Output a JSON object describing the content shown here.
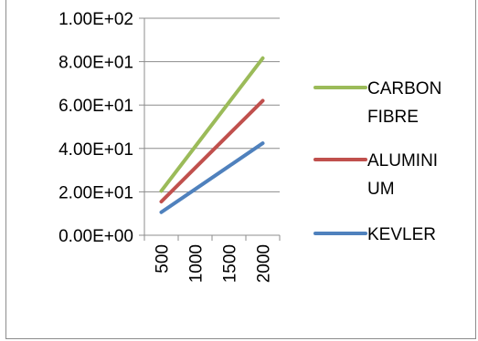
{
  "chart_data": {
    "type": "line",
    "categories": [
      "500",
      "1000",
      "1500",
      "2000"
    ],
    "series": [
      {
        "name": "CARBON FIBRE",
        "name_lines": [
          "CARBON",
          "FIBRE"
        ],
        "color": "#9bbb59",
        "values": [
          20.4,
          40.8,
          61.2,
          81.6
        ]
      },
      {
        "name": "ALUMINIUM",
        "name_lines": [
          "ALUMINI",
          "UM"
        ],
        "color": "#c0504d",
        "values": [
          15.5,
          31.0,
          46.5,
          62.0
        ]
      },
      {
        "name": "KEVLER",
        "name_lines": [
          "KEVLER"
        ],
        "color": "#4f81bd",
        "values": [
          10.6,
          21.2,
          31.8,
          42.4
        ]
      }
    ],
    "y_ticks": [
      "0.00E+00",
      "2.00E+01",
      "4.00E+01",
      "6.00E+01",
      "8.00E+01",
      "1.00E+02"
    ],
    "ylim": [
      0,
      100
    ],
    "grid": true,
    "legend": "right",
    "title": "",
    "xlabel": "",
    "ylabel": ""
  }
}
